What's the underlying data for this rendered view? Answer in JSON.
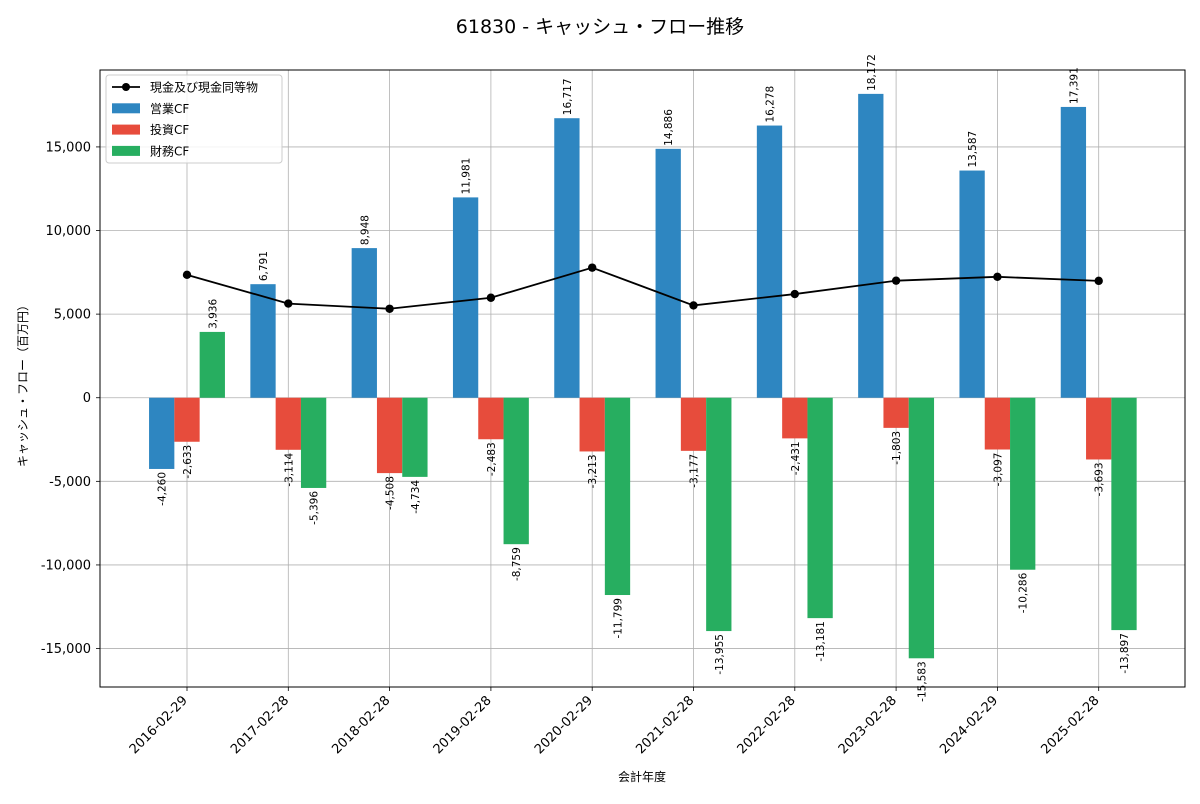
{
  "chart_data": {
    "type": "bar",
    "title": "61830 - キャッシュ・フロー推移",
    "xlabel": "会計年度",
    "ylabel": "キャッシュ・フロー（百万円）",
    "ylim": [
      -17300,
      19600
    ],
    "yticks": [
      -15000,
      -10000,
      -5000,
      0,
      5000,
      10000,
      15000
    ],
    "ytick_labels": [
      "-15,000",
      "-10,000",
      "-5,000",
      "0",
      "5,000",
      "10,000",
      "15,000"
    ],
    "grid": true,
    "legend_position": "top-left",
    "categories": [
      "2016-02-29",
      "2017-02-28",
      "2018-02-28",
      "2019-02-28",
      "2020-02-29",
      "2021-02-28",
      "2022-02-28",
      "2023-02-28",
      "2024-02-29",
      "2025-02-28"
    ],
    "series": [
      {
        "name": "営業CF",
        "kind": "bar",
        "color": "#2e86c1",
        "values": [
          -4260,
          6791,
          8948,
          11981,
          16717,
          14886,
          16278,
          18172,
          13587,
          17391
        ],
        "labels": [
          "-4,260",
          "6,791",
          "8,948",
          "11,981",
          "16,717",
          "14,886",
          "16,278",
          "18,172",
          "13,587",
          "17,391"
        ]
      },
      {
        "name": "投資CF",
        "kind": "bar",
        "color": "#e74c3c",
        "values": [
          -2633,
          -3114,
          -4508,
          -2483,
          -3213,
          -3177,
          -2431,
          -1803,
          -3097,
          -3693
        ],
        "labels": [
          "-2,633",
          "-3,114",
          "-4,508",
          "-2,483",
          "-3,213",
          "-3,177",
          "-2,431",
          "-1,803",
          "-3,097",
          "-3,693"
        ]
      },
      {
        "name": "財務CF",
        "kind": "bar",
        "color": "#27ae60",
        "values": [
          3936,
          -5396,
          -4734,
          -8759,
          -11799,
          -13955,
          -13181,
          -15583,
          -10286,
          -13897
        ],
        "labels": [
          "3,936",
          "-5,396",
          "-4,734",
          "-8,759",
          "-11,799",
          "-13,955",
          "-13,181",
          "-15,583",
          "-10,286",
          "-13,897"
        ]
      },
      {
        "name": "現金及び現金同等物",
        "kind": "line",
        "color": "#000000",
        "values": [
          7350,
          5630,
          5320,
          5980,
          7780,
          5520,
          6200,
          7000,
          7230,
          6990
        ]
      }
    ]
  }
}
